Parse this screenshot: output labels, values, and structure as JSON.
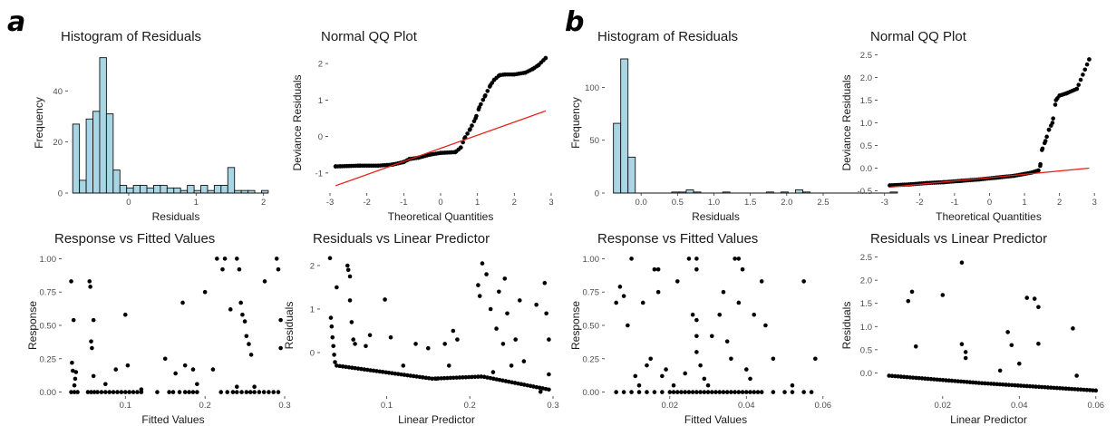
{
  "panel_labels": [
    "a",
    "b"
  ],
  "chart_data": [
    {
      "id": "a-hist",
      "type": "bar",
      "title": "Histogram of Residuals",
      "xlabel": "Residuals",
      "ylabel": "Frequency",
      "xlim": [
        -0.9,
        2.3
      ],
      "ylim": [
        0,
        55
      ],
      "xticks": [
        0,
        1,
        2
      ],
      "yticks": [
        0,
        20,
        40
      ],
      "bin_start": -0.83,
      "bin_width": 0.1,
      "values": [
        27,
        5,
        29,
        32,
        53,
        31,
        9,
        3,
        2,
        3,
        3,
        2,
        3,
        3,
        2,
        2,
        1,
        3,
        1,
        3,
        1,
        3,
        3,
        10,
        1,
        1,
        1,
        0,
        1
      ]
    },
    {
      "id": "a-qq",
      "type": "scatter",
      "title": "Normal QQ Plot",
      "xlabel": "Theoretical Quantities",
      "ylabel": "Deviance Residuals",
      "xlim": [
        -3.05,
        3.05
      ],
      "ylim": [
        -1.55,
        2.3
      ],
      "xticks": [
        -3,
        -2,
        -1,
        0,
        1,
        2,
        3
      ],
      "yticks": [
        -1,
        0,
        1,
        2
      ],
      "qq": {
        "q": [
          -2.85,
          -2.2,
          -1.7,
          -1.3,
          -1.0,
          -0.85,
          -0.6,
          -0.3,
          0,
          0.4,
          0.55,
          0.65,
          0.8,
          0.95,
          1.05,
          1.2,
          1.35,
          1.45,
          1.6,
          1.75,
          2.0,
          2.3,
          2.5,
          2.65,
          2.85
        ],
        "r": [
          -0.82,
          -0.8,
          -0.8,
          -0.77,
          -0.7,
          -0.62,
          -0.58,
          -0.5,
          -0.45,
          -0.43,
          -0.3,
          -0.05,
          0.2,
          0.5,
          0.8,
          1.1,
          1.4,
          1.55,
          1.68,
          1.7,
          1.7,
          1.75,
          1.85,
          1.95,
          2.15
        ]
      },
      "ref_line": {
        "x": [
          -2.85,
          2.85
        ],
        "y": [
          -1.35,
          0.7
        ]
      }
    },
    {
      "id": "a-resp",
      "type": "scatter",
      "title": "Response vs Fitted Values",
      "xlabel": "Fitted Values",
      "ylabel": "Response",
      "xlim": [
        0.02,
        0.3
      ],
      "ylim": [
        -0.03,
        1.03
      ],
      "xticks": [
        0.1,
        0.2,
        0.3
      ],
      "yticks": [
        0,
        0.25,
        0.5,
        0.75,
        1
      ],
      "points": [
        [
          0.032,
          0.83
        ],
        [
          0.033,
          0.22
        ],
        [
          0.034,
          0.16
        ],
        [
          0.035,
          0.54
        ],
        [
          0.036,
          0.05
        ],
        [
          0.037,
          0.1
        ],
        [
          0.038,
          0.15
        ],
        [
          0.055,
          0.83
        ],
        [
          0.056,
          0.79
        ],
        [
          0.057,
          0.38
        ],
        [
          0.058,
          0.33
        ],
        [
          0.06,
          0.54
        ],
        [
          0.06,
          0.12
        ],
        [
          0.075,
          0.06
        ],
        [
          0.088,
          0.17
        ],
        [
          0.1,
          0.58
        ],
        [
          0.103,
          0.2
        ],
        [
          0.12,
          0.02
        ],
        [
          0.15,
          0.25
        ],
        [
          0.163,
          0.14
        ],
        [
          0.172,
          0.67
        ],
        [
          0.175,
          0.2
        ],
        [
          0.185,
          0.17
        ],
        [
          0.19,
          0.06
        ],
        [
          0.2,
          0.75
        ],
        [
          0.21,
          0.17
        ],
        [
          0.215,
          1
        ],
        [
          0.222,
          0.92
        ],
        [
          0.225,
          1
        ],
        [
          0.232,
          0.62
        ],
        [
          0.24,
          0.04
        ],
        [
          0.24,
          1
        ],
        [
          0.243,
          0.92
        ],
        [
          0.245,
          0.67
        ],
        [
          0.247,
          0.58
        ],
        [
          0.25,
          0.53
        ],
        [
          0.252,
          0.42
        ],
        [
          0.255,
          0.36
        ],
        [
          0.258,
          0.28
        ],
        [
          0.262,
          0.04
        ],
        [
          0.275,
          0.83
        ],
        [
          0.29,
          1
        ],
        [
          0.292,
          0.92
        ],
        [
          0.295,
          0.54
        ],
        [
          0.295,
          0.33
        ]
      ],
      "zero_points": [
        0.032,
        0.036,
        0.04,
        0.053,
        0.057,
        0.061,
        0.065,
        0.07,
        0.075,
        0.08,
        0.085,
        0.09,
        0.095,
        0.1,
        0.105,
        0.11,
        0.115,
        0.12,
        0.14,
        0.155,
        0.16,
        0.168,
        0.175,
        0.18,
        0.185,
        0.19,
        0.22,
        0.228,
        0.235,
        0.24,
        0.246,
        0.252,
        0.257,
        0.262,
        0.268,
        0.274,
        0.28,
        0.286,
        0.292
      ]
    },
    {
      "id": "a-rlp",
      "type": "scatter",
      "title": "Residuals vs Linear Predictor",
      "xlabel": "Linear Predictor",
      "ylabel": "Residuals",
      "xlim": [
        0.02,
        0.3
      ],
      "ylim": [
        -1.0,
        2.25
      ],
      "xticks": [
        0.1,
        0.2,
        0.3
      ],
      "yticks": [
        0,
        1,
        2
      ],
      "points": [
        [
          0.032,
          2.17
        ],
        [
          0.033,
          0.8
        ],
        [
          0.034,
          0.6
        ],
        [
          0.035,
          0.35
        ],
        [
          0.036,
          0.15
        ],
        [
          0.037,
          -0.05
        ],
        [
          0.038,
          -0.22
        ],
        [
          0.04,
          1.5
        ],
        [
          0.053,
          2.0
        ],
        [
          0.054,
          1.9
        ],
        [
          0.056,
          1.75
        ],
        [
          0.056,
          1.2
        ],
        [
          0.058,
          0.7
        ],
        [
          0.06,
          0.3
        ],
        [
          0.062,
          0.2
        ],
        [
          0.075,
          0.15
        ],
        [
          0.08,
          0.4
        ],
        [
          0.098,
          1.22
        ],
        [
          0.105,
          0.35
        ],
        [
          0.12,
          -0.3
        ],
        [
          0.135,
          0.2
        ],
        [
          0.15,
          0.1
        ],
        [
          0.16,
          -0.6
        ],
        [
          0.17,
          0.2
        ],
        [
          0.175,
          -0.3
        ],
        [
          0.18,
          0.5
        ],
        [
          0.185,
          0.3
        ],
        [
          0.21,
          1.55
        ],
        [
          0.212,
          1.3
        ],
        [
          0.215,
          2.05
        ],
        [
          0.22,
          1.8
        ],
        [
          0.225,
          1.0
        ],
        [
          0.228,
          -0.45
        ],
        [
          0.232,
          0.55
        ],
        [
          0.235,
          1.4
        ],
        [
          0.24,
          0.2
        ],
        [
          0.242,
          1.7
        ],
        [
          0.245,
          0.9
        ],
        [
          0.25,
          -0.3
        ],
        [
          0.255,
          0.3
        ],
        [
          0.26,
          1.2
        ],
        [
          0.265,
          -0.2
        ],
        [
          0.28,
          1.1
        ],
        [
          0.285,
          -0.9
        ],
        [
          0.29,
          1.6
        ],
        [
          0.292,
          0.9
        ],
        [
          0.295,
          0.3
        ],
        [
          0.295,
          -0.5
        ]
      ],
      "band": {
        "x": [
          0.04,
          0.155,
          0.215,
          0.295
        ],
        "y": [
          -0.3,
          -0.6,
          -0.55,
          -0.85
        ]
      }
    },
    {
      "id": "b-hist",
      "type": "bar",
      "title": "Histogram of Residuals",
      "xlabel": "Residuals",
      "ylabel": "Frequency",
      "xlim": [
        -0.5,
        2.55
      ],
      "ylim": [
        0,
        133
      ],
      "xticks": [
        0,
        0.5,
        1,
        1.5,
        2,
        2.5
      ],
      "yticks": [
        0,
        50,
        100
      ],
      "xtick_labels": [
        "0.0",
        "0.5",
        "1.0",
        "1.5",
        "2.0",
        "2.5"
      ],
      "bin_start": -0.38,
      "bin_width": 0.1,
      "values": [
        66,
        127,
        34,
        0,
        0,
        0,
        0,
        0,
        1,
        1,
        3,
        1,
        0,
        0,
        0,
        1,
        0,
        0,
        0,
        0,
        0,
        1,
        0,
        1,
        0,
        3,
        1,
        0,
        0,
        0,
        0,
        0,
        0,
        0,
        0,
        0,
        0,
        0,
        1
      ]
    },
    {
      "id": "b-qq",
      "type": "scatter",
      "title": "Normal QQ Plot",
      "xlabel": "Theoretical Quantities",
      "ylabel": "Deviance Residuals",
      "xlim": [
        -3.2,
        3.15
      ],
      "ylim": [
        -0.55,
        2.55
      ],
      "xticks": [
        -3,
        -2,
        -1,
        0,
        1,
        2,
        3
      ],
      "yticks": [
        -0.5,
        0,
        0.5,
        1,
        1.5,
        2,
        2.5
      ],
      "ytick_labels": [
        "-0.5",
        "0.0",
        "0.5",
        "1.0",
        "1.5",
        "2.0",
        "2.5"
      ],
      "qq": {
        "q": [
          -2.85,
          -2.3,
          -1.8,
          -1.3,
          -0.8,
          -0.3,
          0.2,
          0.7,
          1.2,
          1.4,
          1.45,
          1.5,
          1.6,
          1.7,
          1.8,
          1.9,
          2.0,
          2.2,
          2.5,
          2.85
        ],
        "r": [
          -0.38,
          -0.36,
          -0.33,
          -0.31,
          -0.28,
          -0.25,
          -0.21,
          -0.17,
          -0.1,
          -0.05,
          0.05,
          0.4,
          0.6,
          0.85,
          1.0,
          1.5,
          1.6,
          1.65,
          1.75,
          2.4
        ]
      },
      "ref_line": {
        "x": [
          -2.85,
          2.85
        ],
        "y": [
          -0.42,
          0.0
        ]
      }
    },
    {
      "id": "b-resp",
      "type": "scatter",
      "title": "Response vs Fitted Values",
      "xlabel": "Fitted Values",
      "ylabel": "Response",
      "xlim": [
        0.003,
        0.061
      ],
      "ylim": [
        -0.03,
        1.03
      ],
      "xticks": [
        0.02,
        0.04,
        0.06
      ],
      "yticks": [
        0,
        0.25,
        0.5,
        0.75,
        1
      ],
      "xtick_labels": [
        "0.02",
        "0.04",
        "0.06"
      ],
      "points": [
        [
          0.006,
          0.67
        ],
        [
          0.007,
          0.79
        ],
        [
          0.008,
          0.72
        ],
        [
          0.009,
          0.5
        ],
        [
          0.01,
          1
        ],
        [
          0.011,
          0.12
        ],
        [
          0.012,
          0.05
        ],
        [
          0.013,
          0.67
        ],
        [
          0.014,
          0.2
        ],
        [
          0.015,
          0.25
        ],
        [
          0.016,
          0.92
        ],
        [
          0.017,
          0.92
        ],
        [
          0.017,
          0.75
        ],
        [
          0.018,
          0.12
        ],
        [
          0.019,
          0.17
        ],
        [
          0.021,
          0.05
        ],
        [
          0.022,
          0.83
        ],
        [
          0.024,
          0.14
        ],
        [
          0.025,
          1
        ],
        [
          0.026,
          0.58
        ],
        [
          0.027,
          1
        ],
        [
          0.027,
          0.92
        ],
        [
          0.027,
          0.54
        ],
        [
          0.027,
          0.42
        ],
        [
          0.027,
          0.3
        ],
        [
          0.028,
          0.2
        ],
        [
          0.029,
          0.1
        ],
        [
          0.03,
          0.05
        ],
        [
          0.031,
          0.42
        ],
        [
          0.033,
          0.58
        ],
        [
          0.034,
          0.75
        ],
        [
          0.035,
          0.38
        ],
        [
          0.036,
          0.25
        ],
        [
          0.037,
          1
        ],
        [
          0.038,
          1
        ],
        [
          0.038,
          0.67
        ],
        [
          0.039,
          0.92
        ],
        [
          0.04,
          0.17
        ],
        [
          0.041,
          0.1
        ],
        [
          0.042,
          0.58
        ],
        [
          0.044,
          0.83
        ],
        [
          0.045,
          0.5
        ],
        [
          0.047,
          0.25
        ],
        [
          0.052,
          0.05
        ],
        [
          0.055,
          0.83
        ],
        [
          0.058,
          0.25
        ]
      ],
      "zero_points": [
        0.006,
        0.008,
        0.01,
        0.012,
        0.014,
        0.016,
        0.018,
        0.02,
        0.021,
        0.022,
        0.023,
        0.024,
        0.025,
        0.026,
        0.027,
        0.028,
        0.029,
        0.03,
        0.031,
        0.032,
        0.033,
        0.034,
        0.035,
        0.036,
        0.037,
        0.038,
        0.039,
        0.04,
        0.041,
        0.042,
        0.043,
        0.044,
        0.047,
        0.05,
        0.052,
        0.055,
        0.057
      ]
    },
    {
      "id": "b-rlp",
      "type": "scatter",
      "title": "Residuals vs Linear Predictor",
      "xlabel": "Linear Predictor",
      "ylabel": "Residuals",
      "xlim": [
        0.003,
        0.061
      ],
      "ylim": [
        -0.5,
        2.55
      ],
      "xticks": [
        0.02,
        0.04,
        0.06
      ],
      "yticks": [
        0,
        0.5,
        1,
        1.5,
        2,
        2.5
      ],
      "xtick_labels": [
        "0.02",
        "0.04",
        "0.06"
      ],
      "ytick_labels": [
        "0.0",
        "0.5",
        "1.0",
        "1.5",
        "2.0",
        "2.5"
      ],
      "points": [
        [
          0.011,
          1.55
        ],
        [
          0.012,
          1.75
        ],
        [
          0.013,
          0.57
        ],
        [
          0.02,
          1.68
        ],
        [
          0.025,
          2.38
        ],
        [
          0.025,
          0.62
        ],
        [
          0.026,
          0.45
        ],
        [
          0.026,
          0.32
        ],
        [
          0.035,
          0.05
        ],
        [
          0.037,
          0.88
        ],
        [
          0.038,
          0.6
        ],
        [
          0.04,
          0.2
        ],
        [
          0.042,
          1.62
        ],
        [
          0.044,
          1.6
        ],
        [
          0.045,
          1.42
        ],
        [
          0.045,
          0.63
        ],
        [
          0.054,
          0.96
        ],
        [
          0.055,
          -0.06
        ]
      ],
      "band": {
        "x": [
          0.006,
          0.03,
          0.06
        ],
        "y": [
          -0.06,
          -0.22,
          -0.38
        ]
      }
    }
  ]
}
